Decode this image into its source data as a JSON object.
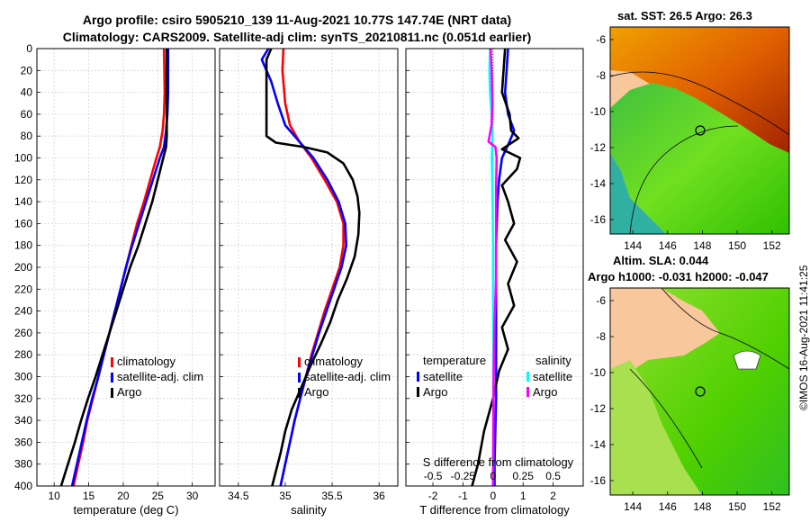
{
  "title_line1": "Argo profile: csiro 5905210_139 11-Aug-2021 10.77S 147.74E (NRT data)",
  "title_line2": "Climatology: CARS2009. Satellite-adj clim: synTS_20210811.nc (0.051d earlier)",
  "sst_title": "sat. SST: 26.5 Argo: 26.3",
  "sla_title1": "Altim. SLA: 0.044",
  "sla_title2": "Argo h1000: -0.031 h2000: -0.047",
  "copyright": "©IMOS 16-Aug-2021 11:41:25",
  "colors": {
    "climatology": "#ff0000",
    "satellite": "#0000ff",
    "argo": "#000000",
    "sal_satellite": "#00ffff",
    "sal_argo": "#ff00ff",
    "land": "#f8c79c",
    "grid": "#d4d4d4"
  },
  "chart_data": [
    {
      "type": "line",
      "xlabel": "temperature (deg C)",
      "ylabel": "depth",
      "xlim": [
        7.5,
        33.3
      ],
      "ylim": [
        400,
        0
      ],
      "x_ticks": [
        10,
        15,
        20,
        25,
        30
      ],
      "y_ticks": [
        0,
        20,
        40,
        60,
        80,
        100,
        120,
        140,
        160,
        180,
        200,
        220,
        240,
        260,
        280,
        300,
        320,
        340,
        360,
        380,
        400
      ],
      "legend": [
        "climatology",
        "satellite-adj. clim",
        "Argo"
      ],
      "series": [
        {
          "name": "climatology",
          "color": "#ff0000",
          "points": [
            [
              25.9,
              0
            ],
            [
              26.0,
              40
            ],
            [
              25.9,
              60
            ],
            [
              25.7,
              75
            ],
            [
              25.3,
              90
            ],
            [
              24.8,
              100
            ],
            [
              23.9,
              120
            ],
            [
              23.0,
              140
            ],
            [
              22.0,
              160
            ],
            [
              21.2,
              180
            ],
            [
              20.4,
              200
            ],
            [
              19.6,
              220
            ],
            [
              18.8,
              240
            ],
            [
              18.0,
              260
            ],
            [
              17.2,
              280
            ],
            [
              16.4,
              300
            ],
            [
              15.6,
              320
            ],
            [
              14.8,
              340
            ],
            [
              14.2,
              360
            ],
            [
              13.5,
              380
            ],
            [
              12.8,
              400
            ]
          ]
        },
        {
          "name": "satellite-adj. clim",
          "color": "#0000ff",
          "points": [
            [
              26.5,
              0
            ],
            [
              26.5,
              40
            ],
            [
              26.4,
              60
            ],
            [
              26.2,
              75
            ],
            [
              25.9,
              90
            ],
            [
              25.3,
              100
            ],
            [
              24.3,
              120
            ],
            [
              23.3,
              140
            ],
            [
              22.3,
              160
            ],
            [
              21.3,
              180
            ],
            [
              20.4,
              200
            ],
            [
              19.6,
              220
            ],
            [
              18.8,
              240
            ],
            [
              18.0,
              260
            ],
            [
              17.2,
              280
            ],
            [
              16.4,
              300
            ],
            [
              15.5,
              320
            ],
            [
              14.7,
              340
            ],
            [
              14.0,
              360
            ],
            [
              13.3,
              380
            ],
            [
              12.6,
              400
            ]
          ]
        },
        {
          "name": "Argo",
          "color": "#000000",
          "points": [
            [
              26.3,
              0
            ],
            [
              26.3,
              40
            ],
            [
              26.3,
              60
            ],
            [
              26.3,
              80
            ],
            [
              26.2,
              90
            ],
            [
              25.8,
              100
            ],
            [
              25.0,
              120
            ],
            [
              24.2,
              140
            ],
            [
              23.2,
              160
            ],
            [
              22.2,
              180
            ],
            [
              21.0,
              200
            ],
            [
              20.0,
              220
            ],
            [
              19.0,
              240
            ],
            [
              18.0,
              260
            ],
            [
              17.0,
              280
            ],
            [
              16.0,
              300
            ],
            [
              14.9,
              320
            ],
            [
              13.9,
              340
            ],
            [
              13.0,
              360
            ],
            [
              12.0,
              380
            ],
            [
              11.0,
              400
            ]
          ]
        }
      ]
    },
    {
      "type": "line",
      "xlabel": "salinity",
      "ylim": [
        400,
        0
      ],
      "xlim": [
        34.3,
        36.2
      ],
      "x_ticks": [
        34.5,
        35,
        35.5,
        36
      ],
      "x_tick_labels": [
        "34.5",
        "35",
        "35.5",
        "36"
      ],
      "y_ticks": [
        0,
        20,
        40,
        60,
        80,
        100,
        120,
        140,
        160,
        180,
        200,
        220,
        240,
        260,
        280,
        300,
        320,
        340,
        360,
        380,
        400
      ],
      "legend": [
        "climatology",
        "satellite-adj. clim",
        "Argo"
      ],
      "series": [
        {
          "name": "climatology",
          "color": "#ff0000",
          "points": [
            [
              34.98,
              0
            ],
            [
              34.97,
              20
            ],
            [
              35.0,
              50
            ],
            [
              35.05,
              70
            ],
            [
              35.15,
              85
            ],
            [
              35.28,
              100
            ],
            [
              35.42,
              120
            ],
            [
              35.55,
              140
            ],
            [
              35.62,
              160
            ],
            [
              35.62,
              180
            ],
            [
              35.58,
              200
            ],
            [
              35.5,
              220
            ],
            [
              35.42,
              240
            ],
            [
              35.35,
              260
            ],
            [
              35.28,
              280
            ],
            [
              35.22,
              300
            ],
            [
              35.16,
              320
            ],
            [
              35.1,
              340
            ],
            [
              35.05,
              360
            ],
            [
              35.0,
              380
            ],
            [
              34.95,
              400
            ]
          ]
        },
        {
          "name": "satellite-adj. clim",
          "color": "#0000ff",
          "points": [
            [
              34.82,
              0
            ],
            [
              34.75,
              10
            ],
            [
              34.85,
              30
            ],
            [
              34.92,
              50
            ],
            [
              35.0,
              70
            ],
            [
              35.15,
              85
            ],
            [
              35.3,
              100
            ],
            [
              35.45,
              120
            ],
            [
              35.57,
              140
            ],
            [
              35.64,
              160
            ],
            [
              35.65,
              180
            ],
            [
              35.6,
              200
            ],
            [
              35.52,
              220
            ],
            [
              35.44,
              240
            ],
            [
              35.36,
              260
            ],
            [
              35.29,
              280
            ],
            [
              35.22,
              300
            ],
            [
              35.16,
              320
            ],
            [
              35.1,
              340
            ],
            [
              35.05,
              360
            ],
            [
              35.0,
              380
            ],
            [
              34.95,
              400
            ]
          ]
        },
        {
          "name": "Argo",
          "color": "#000000",
          "points": [
            [
              34.85,
              0
            ],
            [
              34.8,
              10
            ],
            [
              34.8,
              40
            ],
            [
              34.8,
              60
            ],
            [
              34.8,
              80
            ],
            [
              34.9,
              86
            ],
            [
              35.2,
              90
            ],
            [
              35.45,
              95
            ],
            [
              35.62,
              105
            ],
            [
              35.72,
              120
            ],
            [
              35.77,
              135
            ],
            [
              35.79,
              150
            ],
            [
              35.78,
              170
            ],
            [
              35.74,
              190
            ],
            [
              35.66,
              210
            ],
            [
              35.56,
              230
            ],
            [
              35.48,
              250
            ],
            [
              35.38,
              270
            ],
            [
              35.27,
              290
            ],
            [
              35.17,
              310
            ],
            [
              35.07,
              330
            ],
            [
              35.0,
              350
            ],
            [
              34.95,
              370
            ],
            [
              34.89,
              390
            ],
            [
              34.86,
              400
            ]
          ]
        }
      ]
    },
    {
      "type": "line",
      "xlabel": "T difference from climatology",
      "xlabel_top": "S difference from climatology",
      "xlim": [
        -2.9,
        3.0
      ],
      "ylim": [
        400,
        0
      ],
      "x_ticks": [
        -2,
        -1,
        0,
        1,
        2
      ],
      "x_tick_labels": [
        "-2",
        "-1",
        "0",
        "1",
        "2"
      ],
      "top_ticks": [
        -0.5,
        -0.25,
        0,
        0.25,
        0.5
      ],
      "top_tick_labels": [
        "-0.5",
        "-0.25",
        "0",
        "0.25",
        "0.5"
      ],
      "top_scale": 4,
      "y_ticks": [
        0,
        20,
        40,
        60,
        80,
        100,
        120,
        140,
        160,
        180,
        200,
        220,
        240,
        260,
        280,
        300,
        320,
        340,
        360,
        380,
        400
      ],
      "legend_left_title": "temperature",
      "legend_left": [
        "satellite",
        "Argo"
      ],
      "legend_right_title": "salinity",
      "legend_right": [
        "satellite",
        "Argo"
      ],
      "series": [
        {
          "name": "temperature satellite",
          "color": "#0000ff",
          "points": [
            [
              0.5,
              0
            ],
            [
              0.45,
              20
            ],
            [
              0.4,
              40
            ],
            [
              0.5,
              60
            ],
            [
              0.7,
              75
            ],
            [
              0.55,
              85
            ],
            [
              0.3,
              100
            ],
            [
              0.2,
              120
            ],
            [
              0.15,
              140
            ],
            [
              0.1,
              180
            ],
            [
              0.1,
              260
            ],
            [
              0.1,
              320
            ],
            [
              0.05,
              380
            ],
            [
              0.05,
              400
            ]
          ]
        },
        {
          "name": "temperature Argo",
          "color": "#000000",
          "points": [
            [
              0.4,
              0
            ],
            [
              0.35,
              20
            ],
            [
              0.3,
              40
            ],
            [
              0.55,
              60
            ],
            [
              0.6,
              75
            ],
            [
              0.85,
              82
            ],
            [
              0.3,
              92
            ],
            [
              0.9,
              100
            ],
            [
              0.8,
              110
            ],
            [
              0.3,
              125
            ],
            [
              0.5,
              140
            ],
            [
              0.7,
              160
            ],
            [
              0.4,
              175
            ],
            [
              0.8,
              195
            ],
            [
              0.5,
              215
            ],
            [
              0.7,
              235
            ],
            [
              0.3,
              255
            ],
            [
              0.5,
              275
            ],
            [
              0.2,
              295
            ],
            [
              0.0,
              320
            ],
            [
              -0.3,
              350
            ],
            [
              -0.5,
              380
            ],
            [
              -0.7,
              400
            ]
          ]
        },
        {
          "name": "salinity satellite",
          "color": "#00ffff",
          "points": [
            [
              -0.1,
              0
            ],
            [
              -0.12,
              20
            ],
            [
              -0.1,
              40
            ],
            [
              -0.05,
              60
            ],
            [
              -0.02,
              80
            ],
            [
              -0.04,
              100
            ],
            [
              -0.02,
              130
            ],
            [
              0.0,
              170
            ],
            [
              0.0,
              220
            ],
            [
              0.01,
              280
            ],
            [
              0.01,
              340
            ],
            [
              0.0,
              400
            ]
          ]
        },
        {
          "name": "salinity Argo",
          "color": "#ff00ff",
          "points": [
            [
              -0.08,
              0
            ],
            [
              -0.05,
              20
            ],
            [
              -0.02,
              50
            ],
            [
              -0.05,
              70
            ],
            [
              -0.15,
              85
            ],
            [
              0.08,
              90
            ],
            [
              0.12,
              100
            ],
            [
              0.1,
              130
            ],
            [
              0.1,
              170
            ],
            [
              0.1,
              210
            ],
            [
              0.05,
              250
            ],
            [
              0.02,
              300
            ],
            [
              0.01,
              350
            ],
            [
              0.0,
              400
            ]
          ]
        }
      ]
    }
  ],
  "maps": [
    {
      "name": "sst-map",
      "lon_ticks": [
        "144",
        "146",
        "148",
        "150",
        "152"
      ],
      "lat_ticks": [
        "-6",
        "-8",
        "-10",
        "-12",
        "-14",
        "-16"
      ]
    },
    {
      "name": "sla-map",
      "lon_ticks": [
        "144",
        "146",
        "148",
        "150",
        "152"
      ],
      "lat_ticks": [
        "-6",
        "-8",
        "-10",
        "-12",
        "-14",
        "-16"
      ]
    }
  ]
}
